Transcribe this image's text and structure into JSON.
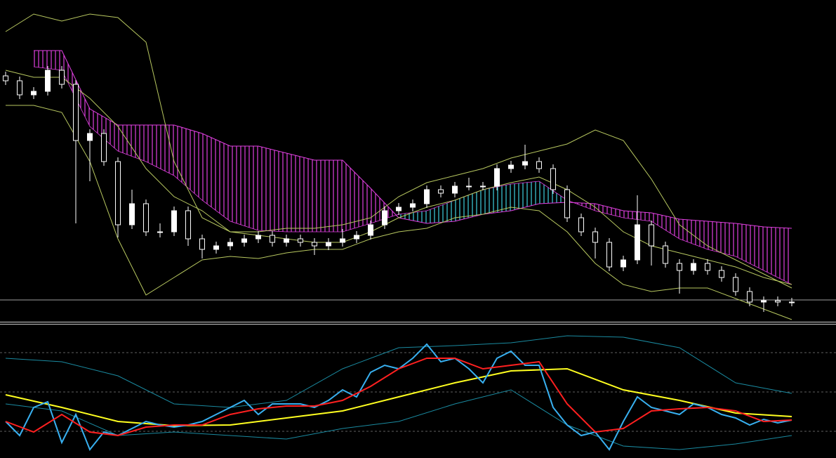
{
  "chart_data": [
    {
      "type": "candlestick",
      "open": [
        350,
        343,
        323,
        328,
        358,
        338,
        258,
        268,
        228,
        138,
        168,
        128,
        128,
        158,
        118,
        103,
        108,
        113,
        118,
        123,
        113,
        118,
        113,
        108,
        113,
        118,
        123,
        138,
        158,
        163,
        168,
        188,
        183,
        193,
        193,
        193,
        218,
        223,
        228,
        218,
        188,
        148,
        128,
        113,
        78,
        88,
        138,
        108,
        83,
        73,
        83,
        73,
        63,
        43,
        28,
        30,
        28
      ],
      "high": [
        356,
        349,
        334,
        364,
        364,
        344,
        274,
        274,
        234,
        188,
        174,
        140,
        164,
        164,
        124,
        114,
        119,
        124,
        129,
        129,
        124,
        124,
        119,
        119,
        132,
        129,
        144,
        164,
        169,
        174,
        194,
        194,
        199,
        205,
        199,
        224,
        229,
        252,
        234,
        224,
        194,
        154,
        134,
        119,
        94,
        180,
        144,
        114,
        89,
        89,
        89,
        79,
        69,
        49,
        36,
        36,
        34
      ],
      "low": [
        337,
        317,
        317,
        322,
        332,
        140,
        200,
        222,
        120,
        132,
        122,
        120,
        122,
        108,
        90,
        97,
        102,
        107,
        112,
        107,
        107,
        107,
        95,
        102,
        107,
        112,
        117,
        132,
        152,
        157,
        162,
        177,
        177,
        187,
        187,
        187,
        212,
        217,
        212,
        182,
        142,
        122,
        90,
        72,
        72,
        82,
        80,
        77,
        40,
        67,
        67,
        57,
        37,
        22,
        14,
        22,
        22
      ],
      "close": [
        343,
        323,
        328,
        358,
        338,
        258,
        268,
        228,
        138,
        168,
        128,
        128,
        158,
        118,
        103,
        108,
        113,
        118,
        123,
        113,
        118,
        113,
        108,
        113,
        118,
        123,
        138,
        158,
        163,
        168,
        188,
        183,
        193,
        193,
        193,
        218,
        223,
        228,
        218,
        188,
        148,
        128,
        113,
        78,
        88,
        138,
        108,
        83,
        73,
        83,
        73,
        63,
        43,
        28,
        30,
        28,
        28
      ],
      "bull_color": "#ffffff",
      "bear_color": "#000000",
      "ylim": [
        0,
        458
      ],
      "hline": 31,
      "hline_color": "#a0a0a0",
      "bands": {
        "color": "#b8c860",
        "x": [
          0,
          2,
          4,
          6,
          8,
          10,
          12,
          14,
          16,
          18,
          20,
          22,
          24,
          26,
          28,
          30,
          32,
          34,
          36,
          38,
          40,
          42,
          44,
          46,
          48,
          50,
          52,
          54,
          56
        ],
        "upper": [
          413,
          438,
          428,
          438,
          433,
          398,
          228,
          148,
          128,
          128,
          133,
          133,
          138,
          148,
          178,
          198,
          208,
          218,
          233,
          243,
          253,
          273,
          258,
          203,
          138,
          108,
          88,
          68,
          48
        ],
        "middle": [
          358,
          348,
          348,
          318,
          278,
          218,
          178,
          158,
          128,
          123,
          118,
          113,
          113,
          128,
          148,
          163,
          173,
          188,
          198,
          206,
          188,
          163,
          128,
          108,
          98,
          88,
          78,
          63,
          53
        ],
        "lower": [
          308,
          308,
          298,
          228,
          118,
          38,
          63,
          88,
          93,
          90,
          98,
          103,
          103,
          118,
          128,
          133,
          148,
          153,
          163,
          158,
          128,
          83,
          53,
          43,
          48,
          48,
          33,
          18,
          3
        ]
      },
      "cloud": {
        "colors": [
          "#e040e0",
          "#40d0e0"
        ],
        "x": [
          2,
          4,
          6,
          8,
          10,
          12,
          14,
          16,
          18,
          20,
          22,
          24,
          26,
          28,
          30,
          32,
          34,
          36,
          38,
          40,
          42,
          44,
          46,
          48,
          50,
          52,
          54,
          56
        ],
        "span_a": [
          363,
          358,
          278,
          243,
          228,
          208,
          173,
          143,
          130,
          128,
          128,
          128,
          140,
          153,
          158,
          173,
          188,
          196,
          200,
          173,
          158,
          148,
          143,
          118,
          103,
          93,
          73,
          53
        ],
        "span_b": [
          386,
          386,
          303,
          280,
          280,
          280,
          268,
          250,
          250,
          240,
          230,
          230,
          190,
          148,
          140,
          143,
          153,
          158,
          168,
          170,
          168,
          158,
          155,
          146,
          143,
          140,
          135,
          133
        ]
      }
    },
    {
      "type": "line",
      "ylim": [
        0,
        190
      ],
      "levels": [
        38,
        94,
        150
      ],
      "level_color": "#808080",
      "series": [
        {
          "color": "#1a8aa0",
          "x": [
            0,
            4,
            8,
            12,
            16,
            20,
            24,
            28,
            32,
            36,
            40,
            44,
            48,
            52,
            56
          ],
          "values": [
            142,
            137,
            117,
            77,
            72,
            82,
            127,
            157,
            160,
            164,
            174,
            172,
            157,
            107,
            92
          ]
        },
        {
          "color": "#1a8aa0",
          "x": [
            0,
            4,
            8,
            12,
            16,
            20,
            24,
            28,
            32,
            36,
            40,
            44,
            48,
            52,
            56
          ],
          "values": [
            77,
            67,
            32,
            37,
            32,
            27,
            42,
            52,
            77,
            97,
            47,
            17,
            12,
            20,
            32
          ]
        },
        {
          "color": "#ffff20",
          "x": [
            0,
            4,
            8,
            12,
            16,
            20,
            24,
            28,
            32,
            36,
            40,
            44,
            48,
            52,
            56
          ],
          "values": [
            90,
            72,
            52,
            46,
            47,
            57,
            67,
            87,
            107,
            124,
            127,
            97,
            82,
            64,
            59
          ]
        },
        {
          "color": "#38b0f0",
          "x": [
            0,
            1,
            2,
            3,
            4,
            5,
            6,
            7,
            8,
            9,
            10,
            11,
            12,
            13,
            14,
            15,
            16,
            17,
            18,
            19,
            20,
            21,
            22,
            23,
            24,
            25,
            26,
            27,
            28,
            29,
            30,
            31,
            32,
            33,
            34,
            35,
            36,
            37,
            38,
            39,
            40,
            41,
            42,
            43,
            44,
            45,
            46,
            47,
            48,
            49,
            50,
            51,
            52,
            53,
            54,
            55,
            56
          ],
          "values": [
            52,
            32,
            72,
            80,
            22,
            62,
            12,
            37,
            32,
            42,
            52,
            47,
            44,
            47,
            52,
            62,
            72,
            82,
            62,
            77,
            77,
            77,
            72,
            82,
            97,
            87,
            122,
            132,
            127,
            142,
            162,
            137,
            142,
            127,
            107,
            142,
            152,
            132,
            132,
            72,
            47,
            32,
            37,
            12,
            52,
            87,
            72,
            67,
            62,
            77,
            72,
            62,
            57,
            47,
            55,
            50,
            54
          ]
        },
        {
          "color": "#ff2020",
          "x": [
            0,
            2,
            4,
            6,
            8,
            10,
            12,
            14,
            16,
            18,
            20,
            22,
            24,
            26,
            28,
            30,
            32,
            34,
            36,
            38,
            40,
            42,
            44,
            46,
            48,
            50,
            52,
            54,
            56
          ],
          "values": [
            52,
            37,
            62,
            37,
            32,
            44,
            47,
            47,
            62,
            70,
            74,
            74,
            82,
            102,
            127,
            142,
            142,
            127,
            132,
            137,
            77,
            37,
            42,
            67,
            70,
            72,
            67,
            52,
            54
          ]
        }
      ]
    }
  ]
}
